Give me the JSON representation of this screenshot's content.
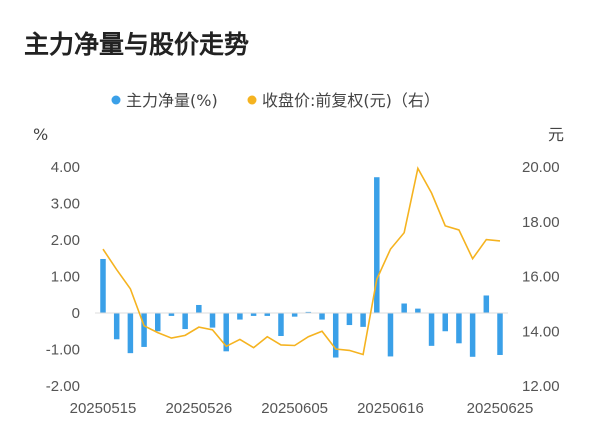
{
  "chart_data": {
    "type": "bar+line",
    "title": "主力净量与股价走势",
    "legend": [
      "主力净量(%)",
      "收盘价:前复权(元)（右）"
    ],
    "left_unit": "%",
    "right_unit": "元",
    "y_left": {
      "min": -2.0,
      "max": 4.0,
      "ticks": [
        "-2.00",
        "-1.00",
        "0",
        "1.00",
        "2.00",
        "3.00",
        "4.00"
      ]
    },
    "y_right": {
      "min": 12.0,
      "max": 20.0,
      "ticks": [
        "12.00",
        "14.00",
        "16.00",
        "18.00",
        "20.00"
      ]
    },
    "x_tick_labels": [
      "20250515",
      "20250526",
      "20250605",
      "20250616",
      "20250625"
    ],
    "x_tick_indices": [
      0,
      7,
      14,
      21,
      29
    ],
    "colors": {
      "bar": "#3AA0E8",
      "line": "#F5B320"
    },
    "net_volume": [
      1.48,
      -0.72,
      -1.1,
      -0.93,
      -0.5,
      -0.08,
      -0.44,
      0.22,
      -0.4,
      -1.05,
      -0.18,
      -0.08,
      -0.08,
      -0.63,
      -0.1,
      0.03,
      -0.18,
      -1.22,
      -0.33,
      -0.38,
      3.72,
      -1.19,
      0.26,
      0.12,
      -0.9,
      -0.5,
      -0.83,
      -1.2,
      0.48,
      -1.15
    ],
    "close_price": [
      17.0,
      16.25,
      15.55,
      14.2,
      13.95,
      13.75,
      13.85,
      14.15,
      14.05,
      13.45,
      13.7,
      13.4,
      13.8,
      13.5,
      13.48,
      13.8,
      14.0,
      13.35,
      13.3,
      13.15,
      15.9,
      17.0,
      17.6,
      19.95,
      19.05,
      17.85,
      17.7,
      16.65,
      17.35,
      17.3
    ]
  }
}
